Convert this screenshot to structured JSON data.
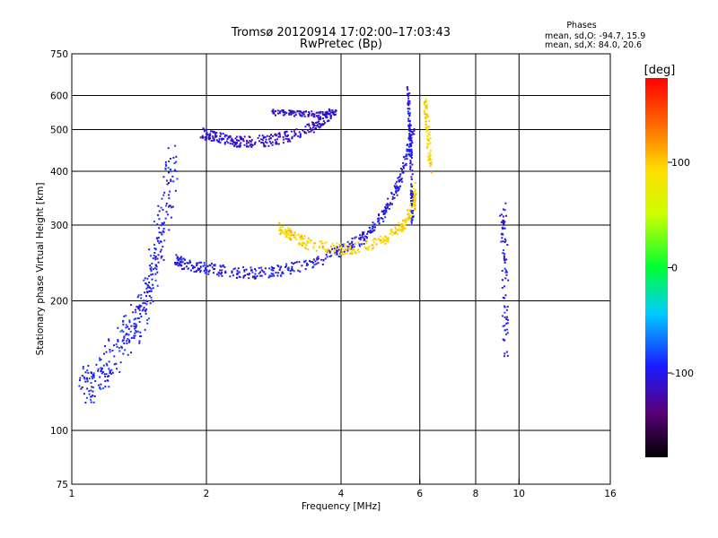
{
  "chart_data": {
    "type": "scatter",
    "title": "Tromsø 20120914 17:02:00–17:03:43",
    "subtitle": "RwPretec (Bp)",
    "xlabel": "Frequency [MHz]",
    "ylabel": "Stationary phase Virtual Height [km]",
    "x_scale": "log",
    "y_scale": "log",
    "xlim": [
      1,
      16
    ],
    "ylim": [
      75,
      750
    ],
    "x_ticks": [
      1,
      2,
      4,
      6,
      8,
      10,
      16
    ],
    "y_ticks": [
      75,
      100,
      200,
      300,
      400,
      500,
      600,
      750
    ],
    "x_grid": [
      2,
      4,
      6,
      8,
      10
    ],
    "y_grid": [
      100,
      200,
      300,
      400,
      500,
      600
    ],
    "grid": true,
    "stats": {
      "heading": "Phases",
      "line_o": "mean, sd,O: -94.7, 15.9",
      "line_x": "mean, sd,X: 84.0, 20.6"
    },
    "colorbar": {
      "label": "[deg]",
      "range": [
        -180,
        180
      ],
      "ticks": [
        100,
        0,
        -100
      ],
      "placement": "right"
    },
    "series": [
      {
        "color_phase": -95,
        "segments": [
          {
            "f": [
              1.05,
              1.12,
              1.2,
              1.3,
              1.38,
              1.45,
              1.5,
              1.56,
              1.63,
              1.68
            ],
            "h": [
              128,
              128,
              140,
              160,
              175,
              190,
              220,
              270,
              330,
              420
            ],
            "spread": 0.1
          }
        ]
      },
      {
        "color_phase": -100,
        "segments": [
          {
            "f": [
              1.7,
              1.8,
              2.0,
              2.3,
              2.6,
              3.0,
              3.5,
              4.0,
              4.5,
              4.9,
              5.3,
              5.6,
              5.8
            ],
            "h": [
              250,
              242,
              238,
              233,
              232,
              236,
              245,
              262,
              280,
              310,
              360,
              430,
              500
            ],
            "spread": 0.03
          }
        ]
      },
      {
        "color_phase": -110,
        "segments": [
          {
            "f": [
              1.95,
              2.1,
              2.3,
              2.5,
              2.8,
              3.1,
              3.5,
              3.8
            ],
            "h": [
              490,
              480,
              470,
              468,
              472,
              485,
              510,
              545
            ],
            "spread": 0.03
          },
          {
            "f": [
              2.8,
              3.2,
              3.6,
              3.9
            ],
            "h": [
              548,
              545,
              542,
              550
            ],
            "spread": 0.015
          }
        ]
      },
      {
        "color_phase": 95,
        "segments": [
          {
            "f": [
              2.9,
              3.1,
              3.4,
              4.0,
              4.6,
              5.1,
              5.5,
              5.8,
              5.85
            ],
            "h": [
              295,
              285,
              270,
              263,
              268,
              280,
              300,
              330,
              370
            ],
            "spread": 0.03
          },
          {
            "f": [
              6.15,
              6.25,
              6.35
            ],
            "h": [
              590,
              500,
              400
            ],
            "spread": 0.03
          }
        ]
      },
      {
        "color_phase": -100,
        "segments": [
          {
            "f": [
              5.65,
              5.7,
              5.75,
              5.78
            ],
            "h": [
              620,
              500,
              400,
              300
            ],
            "spread": 0.02
          },
          {
            "f": [
              9.2,
              9.3,
              9.35
            ],
            "h": [
              330,
              250,
              150
            ],
            "spread": 0.05
          }
        ]
      }
    ]
  }
}
